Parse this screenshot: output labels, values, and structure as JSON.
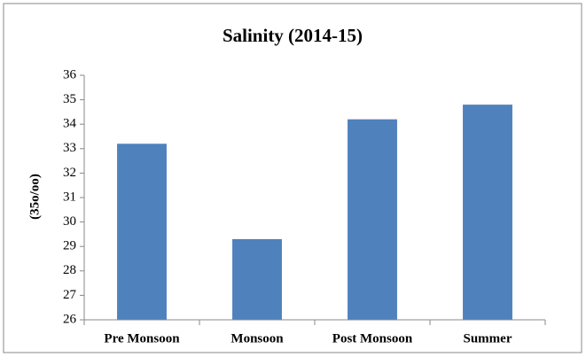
{
  "chart_data": {
    "type": "bar",
    "title": "Salinity (2014-15)",
    "y_label": "(35o/oo)",
    "categories": [
      "Pre Monsoon",
      "Monsoon",
      "Post Monsoon",
      "Summer"
    ],
    "values": [
      33.2,
      29.3,
      34.2,
      34.8
    ],
    "color": "#4f81bd",
    "ylim": [
      26,
      36
    ],
    "yticks": [
      26,
      27,
      28,
      29,
      30,
      31,
      32,
      33,
      34,
      35,
      36
    ],
    "grid": false
  }
}
